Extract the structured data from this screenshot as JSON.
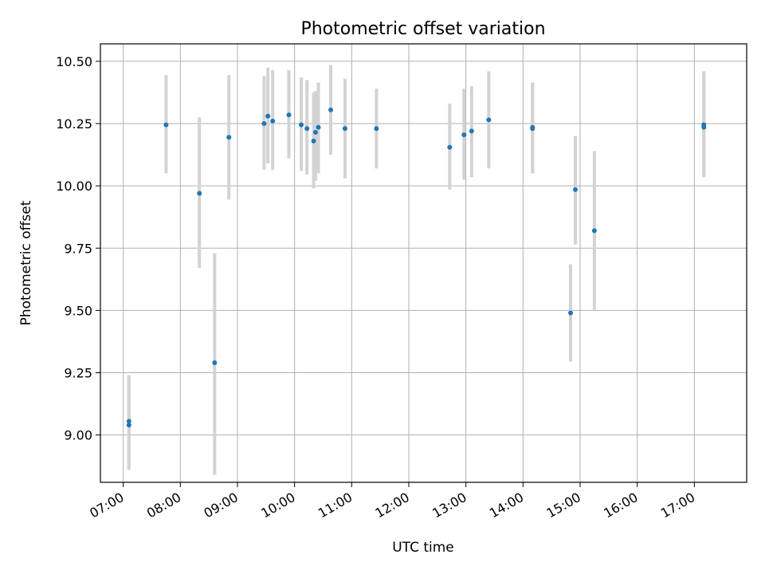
{
  "chart_data": {
    "type": "scatter",
    "title": "Photometric offset variation",
    "xlabel": "UTC time",
    "ylabel": "Photometric offset",
    "grid": true,
    "legend": "none",
    "marker_color": "#1f77b4",
    "errorbar_color": "#d3d3d3",
    "xlim": [
      "06:36",
      "17:55"
    ],
    "ylim": [
      8.81,
      10.57
    ],
    "x_ticks": [
      "07:00",
      "08:00",
      "09:00",
      "10:00",
      "11:00",
      "12:00",
      "13:00",
      "14:00",
      "15:00",
      "16:00",
      "17:00"
    ],
    "y_ticks": [
      "9.00",
      "9.25",
      "9.50",
      "9.75",
      "10.00",
      "10.25",
      "10.50"
    ],
    "points": [
      {
        "x": "07:06",
        "y": 9.055,
        "ylo": 8.86,
        "yhi": 9.24
      },
      {
        "x": "07:06",
        "y": 9.04,
        "ylo": 8.86,
        "yhi": 9.24
      },
      {
        "x": "07:45",
        "y": 10.245,
        "ylo": 10.05,
        "yhi": 10.445
      },
      {
        "x": "08:20",
        "y": 9.97,
        "ylo": 9.67,
        "yhi": 10.275
      },
      {
        "x": "08:36",
        "y": 9.29,
        "ylo": 8.84,
        "yhi": 9.73
      },
      {
        "x": "08:51",
        "y": 10.195,
        "ylo": 9.945,
        "yhi": 10.445
      },
      {
        "x": "09:28",
        "y": 10.25,
        "ylo": 10.065,
        "yhi": 10.44
      },
      {
        "x": "09:32",
        "y": 10.28,
        "ylo": 10.09,
        "yhi": 10.475
      },
      {
        "x": "09:37",
        "y": 10.26,
        "ylo": 10.065,
        "yhi": 10.465
      },
      {
        "x": "09:54",
        "y": 10.285,
        "ylo": 10.11,
        "yhi": 10.465
      },
      {
        "x": "10:07",
        "y": 10.245,
        "ylo": 10.06,
        "yhi": 10.435
      },
      {
        "x": "10:13",
        "y": 10.23,
        "ylo": 10.045,
        "yhi": 10.425
      },
      {
        "x": "10:20",
        "y": 10.18,
        "ylo": 9.99,
        "yhi": 10.375
      },
      {
        "x": "10:22",
        "y": 10.215,
        "ylo": 10.02,
        "yhi": 10.38
      },
      {
        "x": "10:25",
        "y": 10.235,
        "ylo": 10.05,
        "yhi": 10.415
      },
      {
        "x": "10:38",
        "y": 10.305,
        "ylo": 10.125,
        "yhi": 10.485
      },
      {
        "x": "10:53",
        "y": 10.23,
        "ylo": 10.03,
        "yhi": 10.43
      },
      {
        "x": "11:26",
        "y": 10.23,
        "ylo": 10.07,
        "yhi": 10.39
      },
      {
        "x": "12:43",
        "y": 10.155,
        "ylo": 9.985,
        "yhi": 10.33
      },
      {
        "x": "12:58",
        "y": 10.205,
        "ylo": 10.025,
        "yhi": 10.39
      },
      {
        "x": "13:06",
        "y": 10.22,
        "ylo": 10.035,
        "yhi": 10.4
      },
      {
        "x": "13:24",
        "y": 10.265,
        "ylo": 10.07,
        "yhi": 10.46
      },
      {
        "x": "14:10",
        "y": 10.235,
        "ylo": 10.05,
        "yhi": 10.415
      },
      {
        "x": "14:10",
        "y": 10.23,
        "ylo": 10.05,
        "yhi": 10.415
      },
      {
        "x": "14:50",
        "y": 9.49,
        "ylo": 9.295,
        "yhi": 9.685
      },
      {
        "x": "14:55",
        "y": 9.985,
        "ylo": 9.765,
        "yhi": 10.2
      },
      {
        "x": "15:15",
        "y": 9.82,
        "ylo": 9.5,
        "yhi": 10.14
      },
      {
        "x": "17:10",
        "y": 10.245,
        "ylo": 10.04,
        "yhi": 10.46
      },
      {
        "x": "17:10",
        "y": 10.235,
        "ylo": 10.035,
        "yhi": 10.445
      }
    ]
  }
}
